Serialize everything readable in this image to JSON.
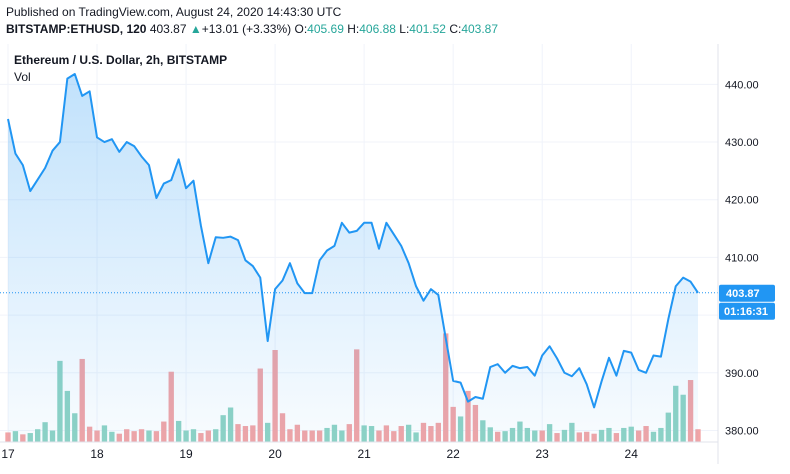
{
  "header": {
    "published": "Published on TradingView.com, August 24, 2020 14:43:30 UTC",
    "symbol": "BITSTAMP:ETHUSD, 120",
    "last": "403.87",
    "change_arrow": "▲",
    "change": "+13.01 (+3.33%)",
    "o_label": "O:",
    "o_value": "405.69",
    "h_label": "H:",
    "h_value": "406.88",
    "l_label": "L:",
    "l_value": "401.52",
    "c_label": "C:",
    "c_value": "403.87"
  },
  "chart_data": {
    "type": "area",
    "title": "Ethereum / U.S. Dollar, 2h, BITSTAMP",
    "volume_label": "Vol",
    "line_color": "#2196f3",
    "fill_color": "#cfe5f8",
    "up_volume_color": "#8fd3c4",
    "down_volume_color": "#f2a4a6",
    "ylim": [
      378,
      447
    ],
    "y_ticks": [
      "380.00",
      "390.00",
      "400.00",
      "410.00",
      "420.00",
      "430.00",
      "440.00"
    ],
    "x_ticks": [
      {
        "label": "17",
        "index": 0
      },
      {
        "label": "18",
        "index": 12
      },
      {
        "label": "19",
        "index": 24
      },
      {
        "label": "20",
        "index": 36
      },
      {
        "label": "21",
        "index": 48
      },
      {
        "label": "22",
        "index": 60
      },
      {
        "label": "23",
        "index": 72
      },
      {
        "label": "24",
        "index": 84
      }
    ],
    "last_price": 403.87,
    "last_price_label": "403.87",
    "countdown_label": "01:16:31",
    "closes": [
      434.0,
      428.0,
      426.0,
      421.5,
      423.5,
      425.5,
      428.5,
      430.0,
      441.0,
      441.8,
      438.0,
      438.8,
      430.8,
      430.0,
      430.5,
      428.3,
      430.0,
      429.3,
      427.5,
      426.0,
      420.3,
      422.8,
      423.4,
      427.0,
      422.0,
      423.3,
      415.5,
      409.0,
      413.5,
      413.4,
      413.6,
      413.0,
      409.5,
      408.5,
      406.5,
      395.5,
      404.5,
      406.0,
      409.0,
      405.5,
      403.8,
      403.8,
      409.5,
      411.2,
      412.0,
      416.0,
      414.3,
      414.6,
      416.0,
      416.0,
      411.5,
      416.0,
      414.0,
      412.0,
      409.0,
      405.0,
      402.5,
      404.5,
      403.5,
      396.0,
      388.6,
      388.3,
      385.0,
      385.8,
      385.5,
      391.0,
      391.5,
      390.0,
      391.2,
      390.8,
      391.0,
      389.5,
      393.0,
      394.6,
      392.5,
      390.0,
      389.4,
      390.8,
      388.0,
      384.0,
      388.5,
      392.6,
      389.5,
      393.8,
      393.5,
      390.5,
      390.0,
      393.0,
      392.8,
      399.3,
      405.0,
      406.5,
      405.8,
      403.87
    ],
    "volumes": [
      {
        "v": 1.5,
        "up": false
      },
      {
        "v": 1.7,
        "up": true
      },
      {
        "v": 1.2,
        "up": false
      },
      {
        "v": 1.4,
        "up": true
      },
      {
        "v": 2.0,
        "up": true
      },
      {
        "v": 3.1,
        "up": true
      },
      {
        "v": 1.8,
        "up": true
      },
      {
        "v": 12.7,
        "up": true
      },
      {
        "v": 8.0,
        "up": true
      },
      {
        "v": 4.5,
        "up": true
      },
      {
        "v": 13.0,
        "up": false
      },
      {
        "v": 2.4,
        "up": false
      },
      {
        "v": 1.8,
        "up": false
      },
      {
        "v": 2.6,
        "up": true
      },
      {
        "v": 1.6,
        "up": true
      },
      {
        "v": 1.3,
        "up": false
      },
      {
        "v": 2.0,
        "up": false
      },
      {
        "v": 1.7,
        "up": false
      },
      {
        "v": 2.0,
        "up": false
      },
      {
        "v": 1.8,
        "up": true
      },
      {
        "v": 1.7,
        "up": false
      },
      {
        "v": 3.2,
        "up": false
      },
      {
        "v": 11.0,
        "up": false
      },
      {
        "v": 3.3,
        "up": true
      },
      {
        "v": 1.8,
        "up": true
      },
      {
        "v": 2.0,
        "up": true
      },
      {
        "v": 1.4,
        "up": false
      },
      {
        "v": 1.8,
        "up": false
      },
      {
        "v": 2.0,
        "up": true
      },
      {
        "v": 4.2,
        "up": true
      },
      {
        "v": 5.4,
        "up": true
      },
      {
        "v": 2.8,
        "up": false
      },
      {
        "v": 2.5,
        "up": false
      },
      {
        "v": 2.6,
        "up": false
      },
      {
        "v": 11.5,
        "up": false
      },
      {
        "v": 3.0,
        "up": true
      },
      {
        "v": 14.4,
        "up": false
      },
      {
        "v": 4.5,
        "up": false
      },
      {
        "v": 2.0,
        "up": false
      },
      {
        "v": 2.7,
        "up": false
      },
      {
        "v": 1.8,
        "up": false
      },
      {
        "v": 1.8,
        "up": false
      },
      {
        "v": 1.8,
        "up": false
      },
      {
        "v": 2.2,
        "up": true
      },
      {
        "v": 2.7,
        "up": true
      },
      {
        "v": 1.8,
        "up": true
      },
      {
        "v": 2.8,
        "up": false
      },
      {
        "v": 14.5,
        "up": false
      },
      {
        "v": 2.6,
        "up": true
      },
      {
        "v": 2.5,
        "up": true
      },
      {
        "v": 1.8,
        "up": false
      },
      {
        "v": 2.6,
        "up": false
      },
      {
        "v": 1.7,
        "up": false
      },
      {
        "v": 2.5,
        "up": false
      },
      {
        "v": 2.7,
        "up": true
      },
      {
        "v": 1.5,
        "up": true
      },
      {
        "v": 3.0,
        "up": false
      },
      {
        "v": 2.5,
        "up": false
      },
      {
        "v": 3.0,
        "up": false
      },
      {
        "v": 17.0,
        "up": false
      },
      {
        "v": 5.5,
        "up": false
      },
      {
        "v": 4.0,
        "up": true
      },
      {
        "v": 8.0,
        "up": false
      },
      {
        "v": 5.8,
        "up": false
      },
      {
        "v": 3.4,
        "up": true
      },
      {
        "v": 2.3,
        "up": true
      },
      {
        "v": 1.6,
        "up": false
      },
      {
        "v": 1.7,
        "up": true
      },
      {
        "v": 2.2,
        "up": true
      },
      {
        "v": 3.2,
        "up": true
      },
      {
        "v": 2.2,
        "up": true
      },
      {
        "v": 1.8,
        "up": true
      },
      {
        "v": 1.8,
        "up": false
      },
      {
        "v": 2.8,
        "up": true
      },
      {
        "v": 1.4,
        "up": false
      },
      {
        "v": 1.9,
        "up": true
      },
      {
        "v": 3.0,
        "up": true
      },
      {
        "v": 1.5,
        "up": false
      },
      {
        "v": 1.6,
        "up": false
      },
      {
        "v": 1.3,
        "up": false
      },
      {
        "v": 1.9,
        "up": true
      },
      {
        "v": 2.2,
        "up": true
      },
      {
        "v": 1.4,
        "up": false
      },
      {
        "v": 2.2,
        "up": true
      },
      {
        "v": 2.4,
        "up": true
      },
      {
        "v": 1.8,
        "up": false
      },
      {
        "v": 2.5,
        "up": false
      },
      {
        "v": 1.6,
        "up": true
      },
      {
        "v": 2.2,
        "up": true
      },
      {
        "v": 4.6,
        "up": true
      },
      {
        "v": 8.8,
        "up": true
      },
      {
        "v": 7.4,
        "up": true
      },
      {
        "v": 9.7,
        "up": false
      },
      {
        "v": 2.0,
        "up": false
      }
    ]
  }
}
